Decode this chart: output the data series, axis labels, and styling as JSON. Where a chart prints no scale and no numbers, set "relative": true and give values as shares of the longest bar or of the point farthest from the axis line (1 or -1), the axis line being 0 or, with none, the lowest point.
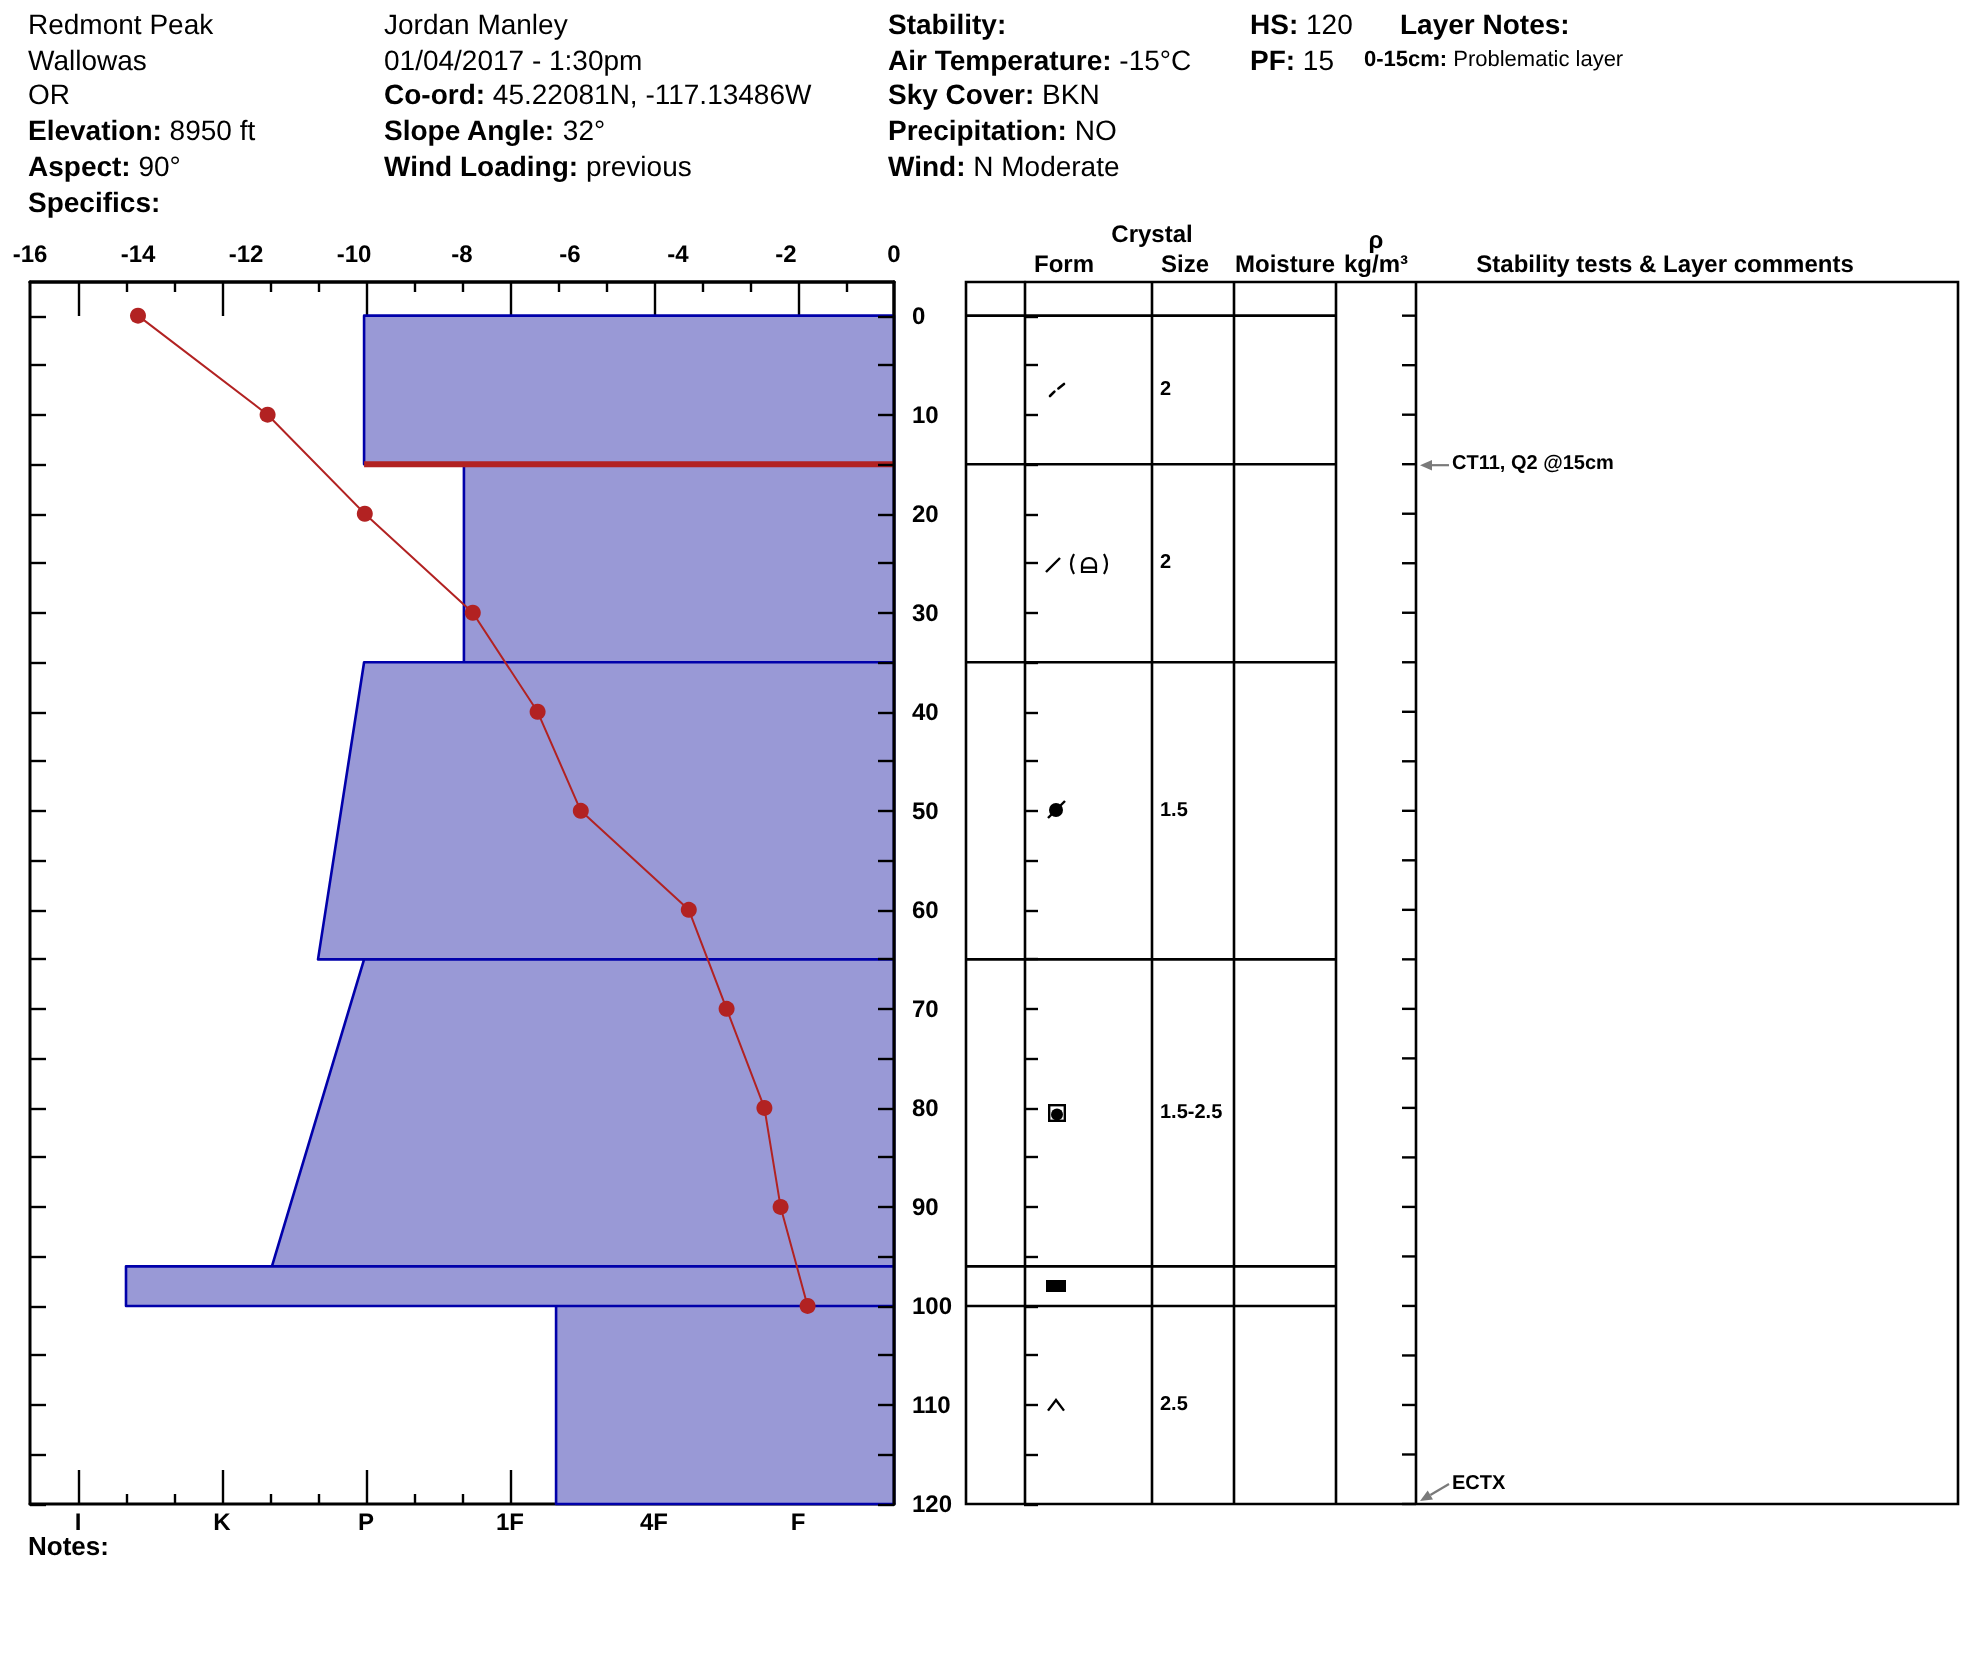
{
  "chart_data": [
    {
      "type": "line",
      "xlim": [
        -16,
        0
      ],
      "xticks": [
        -16,
        -14,
        -12,
        -10,
        -8,
        -6,
        -4,
        -2,
        0
      ],
      "ylim": [
        120,
        -3.4
      ],
      "yticks": [
        0,
        {
          "value": 5,
          "label": null
        },
        10,
        {
          "value": 15,
          "label": null
        },
        20,
        {
          "value": 25,
          "label": null
        },
        30,
        {
          "value": 35,
          "label": null
        },
        40,
        {
          "value": 45,
          "label": null
        },
        50,
        {
          "value": 55,
          "label": null
        },
        60,
        {
          "value": 65,
          "label": null
        },
        70,
        {
          "value": 75,
          "label": null
        },
        80,
        {
          "value": 85,
          "label": null
        },
        90,
        {
          "value": 95,
          "label": null
        },
        100,
        {
          "value": 105,
          "label": null
        },
        110,
        {
          "value": 115,
          "label": null
        },
        120
      ],
      "marker": "circle",
      "series": [
        {
          "color": "#b22222",
          "x": [
            -14,
            -11.6,
            -9.8,
            -7.8,
            -6.6,
            -5.8,
            -3.8,
            -3.1,
            -2.4,
            -2.1,
            -1.6
          ],
          "values": [
            0,
            10,
            20,
            30,
            40,
            50,
            60,
            70,
            80,
            90,
            100
          ]
        }
      ],
      "annotations": [
        "Redmont Peak",
        "Wallowas",
        "OR",
        "Elevation: 8950 ft",
        "Aspect: 90°",
        "Specifics:",
        "Jordan Manley",
        "01/04/2017 - 1:30pm",
        "Co-ord: 45.22081N, -117.13486W",
        "Slope Angle: 32°",
        "Wind Loading: previous",
        "Stability:",
        "Air Temperature: -15°C",
        "Sky Cover: BKN",
        "Precipitation: NO",
        "Wind: N Moderate",
        "HS: 120",
        "PF: 15",
        "Layer Notes:",
        "0-15cm: Problematic layer",
        "Crystal",
        "Form",
        "Size",
        "Moisture",
        "ρ\nkg/m³",
        "Stability tests & Layer comments",
        "2",
        "CT11, Q2 @15cm",
        "2",
        "1.5",
        "1.5-2.5",
        "2.5",
        "ECTX",
        "Notes:"
      ]
    },
    {
      "type": "area",
      "orientation": "horizontal",
      "relative": true,
      "ylim": [
        120,
        -3.4
      ],
      "tick_labels": false,
      "ref_lines": [
        {
          "axis": "y",
          "value": 15,
          "color": "#b22222"
        }
      ],
      "series": [
        {
          "color": "#9999d6",
          "x": [
            0,
            15,
            15,
            35,
            35,
            65,
            65,
            96,
            96,
            100,
            100,
            120
          ],
          "values": [
            -0.69,
            -0.69,
            -0.56,
            -0.56,
            -0.69,
            -0.75,
            -0.69,
            -0.81,
            -1,
            -1,
            -0.44,
            -0.44
          ]
        }
      ],
      "annotations": [
        "I",
        "K",
        "P",
        "1F",
        "4F",
        "F"
      ]
    }
  ]
}
